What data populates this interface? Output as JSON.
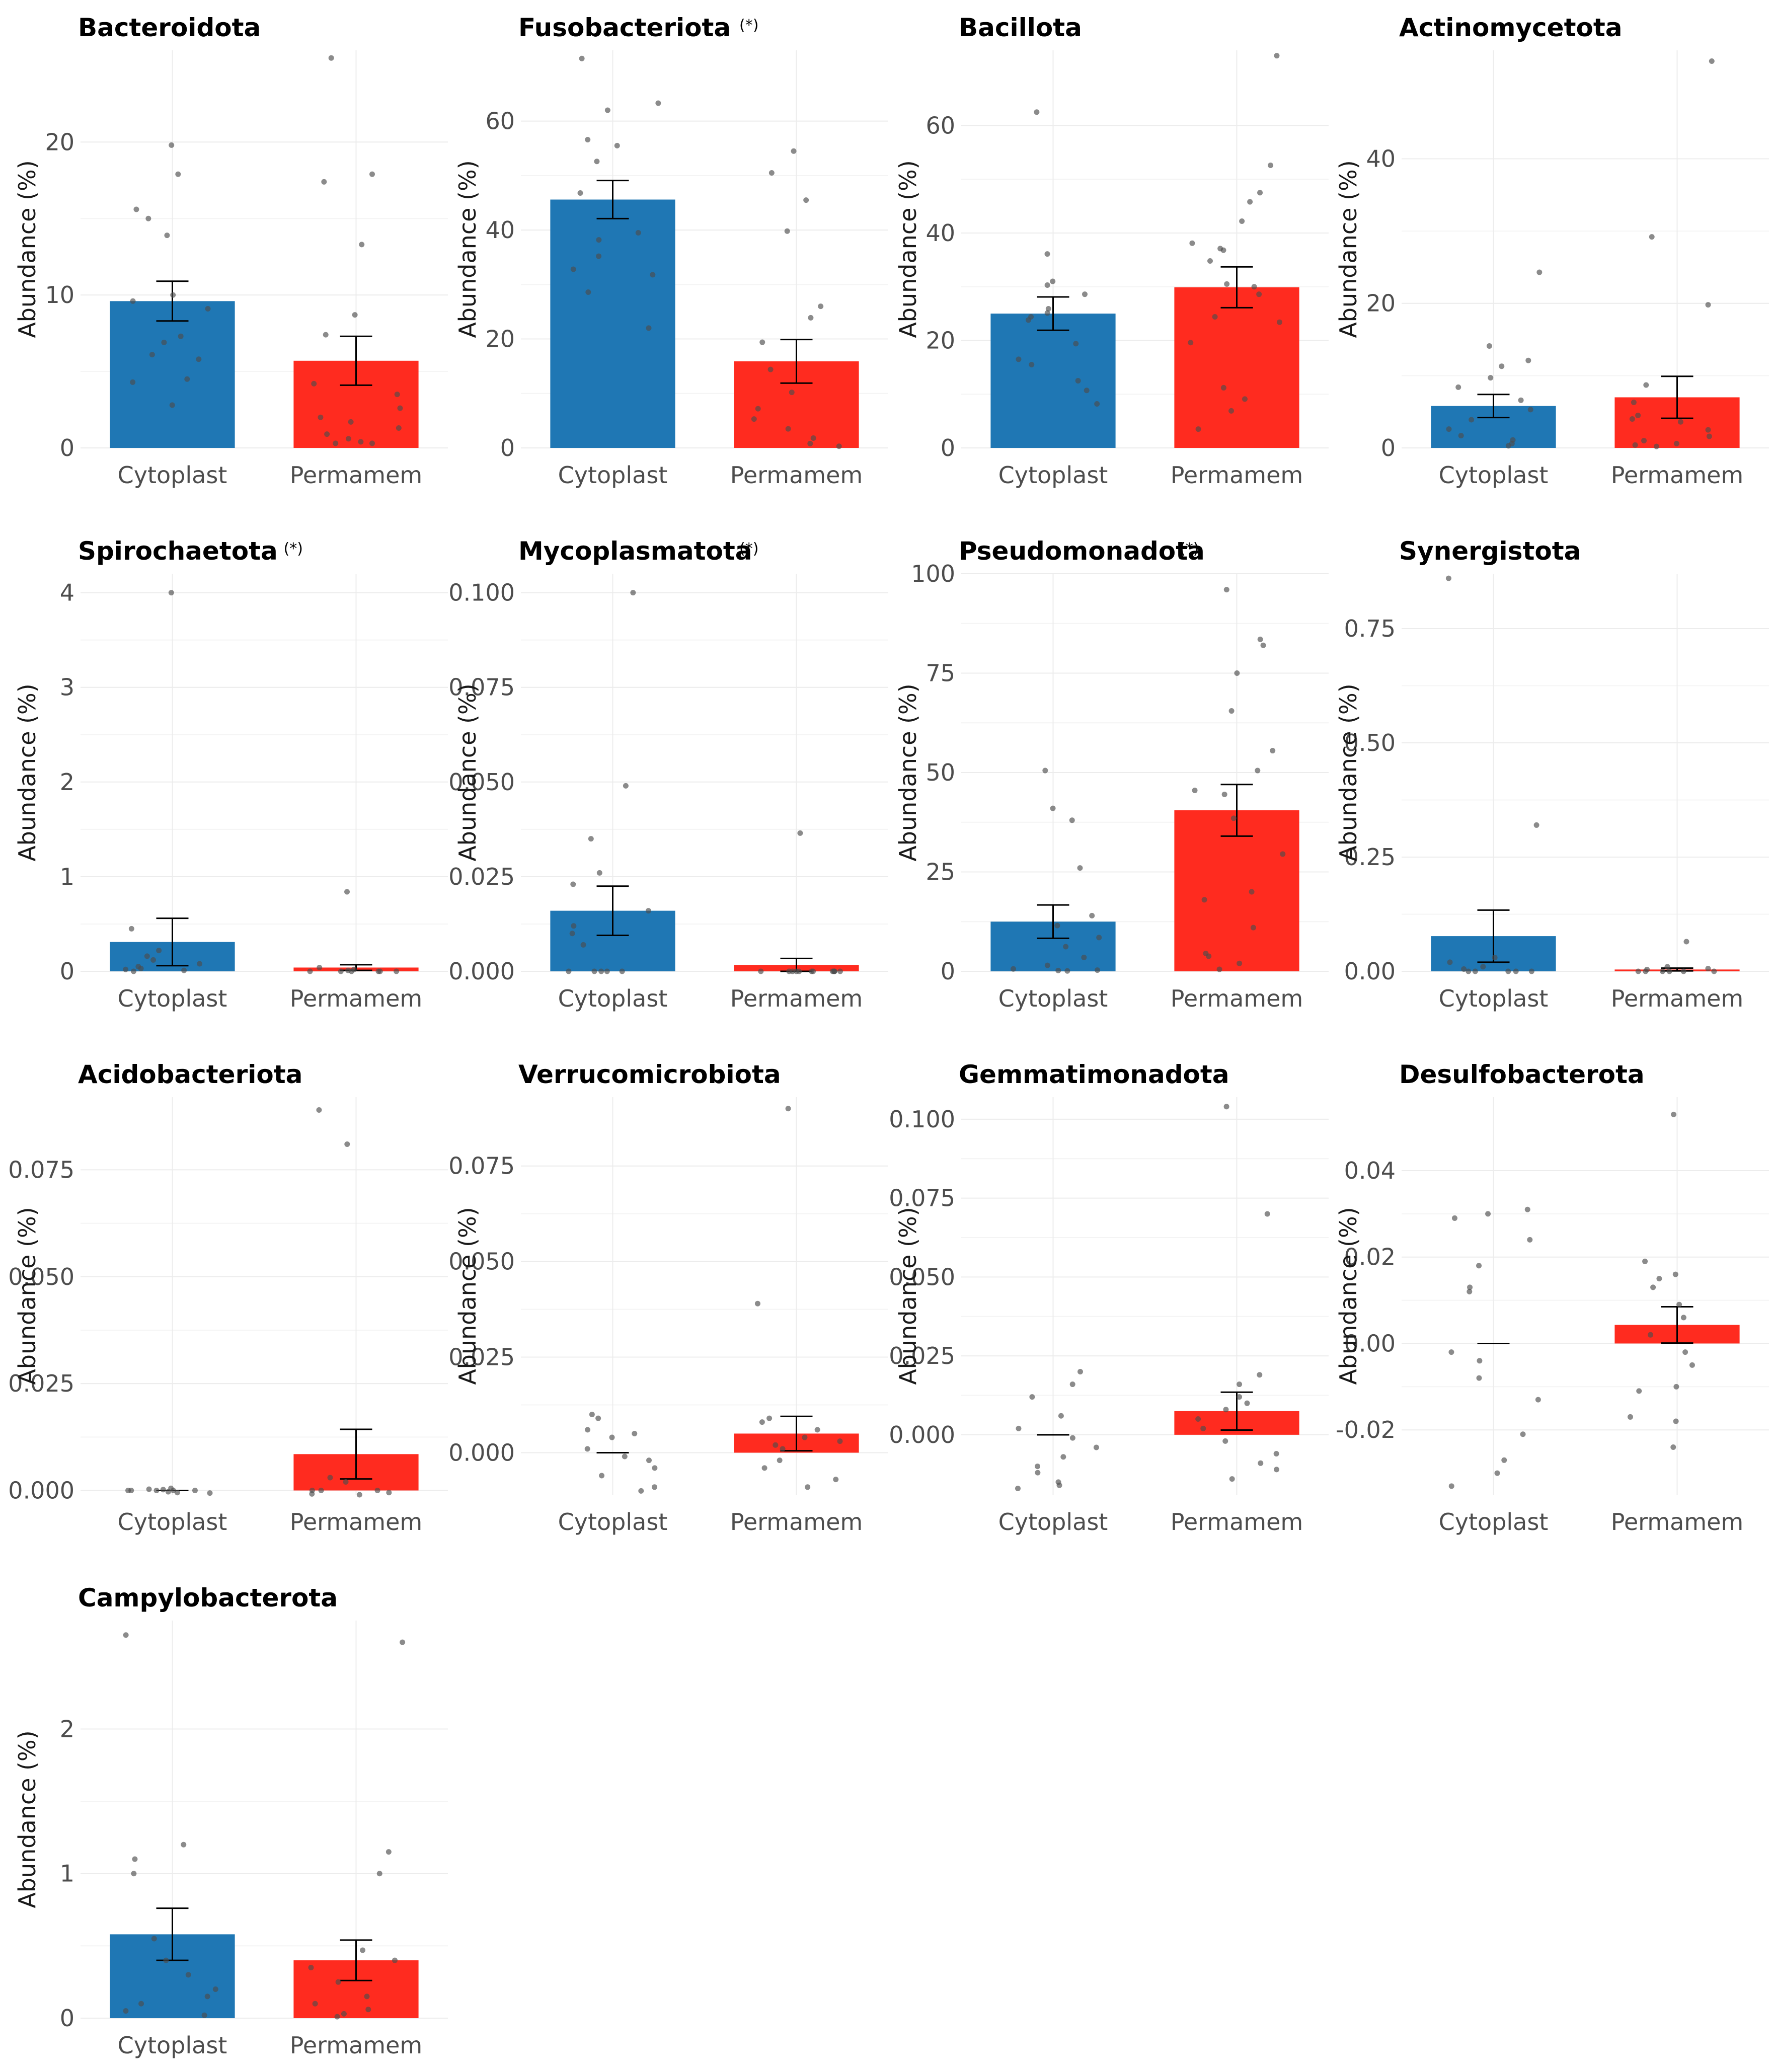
{
  "chart_data": [
    {
      "type": "bar",
      "title": "Bacteroidota",
      "sig": "",
      "ylabel": "Abundance (%)",
      "categories": [
        "Cytoplast",
        "Permamem"
      ],
      "values": [
        9.6,
        5.7
      ],
      "se": [
        1.3,
        1.6
      ],
      "ylim": [
        0,
        26
      ],
      "yticks": [
        "0",
        "10",
        "20"
      ],
      "ytick_values": [
        0,
        10,
        20
      ],
      "points": [
        [
          19.8,
          17.9,
          15.6,
          15.0,
          13.9,
          10.0,
          9.6,
          9.1,
          7.3,
          6.9,
          6.1,
          5.8,
          4.5,
          4.3,
          2.8
        ],
        [
          25.5,
          17.9,
          17.4,
          13.3,
          8.7,
          7.4,
          4.2,
          3.5,
          2.6,
          2.0,
          1.7,
          1.3,
          0.9,
          0.6,
          0.4,
          0.3,
          0.3
        ]
      ]
    },
    {
      "type": "bar",
      "title": "Fusobacteriota",
      "sig": "(*)",
      "ylabel": "Abundance (%)",
      "categories": [
        "Cytoplast",
        "Permamem"
      ],
      "values": [
        45.6,
        15.9
      ],
      "se": [
        3.5,
        4.0
      ],
      "ylim": [
        0,
        73
      ],
      "yticks": [
        "0",
        "20",
        "40",
        "60"
      ],
      "ytick_values": [
        0,
        20,
        40,
        60
      ],
      "points": [
        [
          71.5,
          63.3,
          62.0,
          56.6,
          55.5,
          52.6,
          46.8,
          39.5,
          38.2,
          35.2,
          32.8,
          31.8,
          28.6,
          22.0
        ],
        [
          54.5,
          50.5,
          45.5,
          39.8,
          26.0,
          23.9,
          19.4,
          14.4,
          10.2,
          7.2,
          5.3,
          3.5,
          1.8,
          0.8,
          0.3
        ]
      ]
    },
    {
      "type": "bar",
      "title": "Bacillota",
      "sig": "",
      "ylabel": "Abundance (%)",
      "categories": [
        "Cytoplast",
        "Permamem"
      ],
      "values": [
        25.0,
        29.9
      ],
      "se": [
        3.1,
        3.8
      ],
      "ylim": [
        0,
        74
      ],
      "yticks": [
        "0",
        "20",
        "40",
        "60"
      ],
      "ytick_values": [
        0,
        20,
        40,
        60
      ],
      "points": [
        [
          62.5,
          36.1,
          31.0,
          30.3,
          28.6,
          25.9,
          25.1,
          24.4,
          23.8,
          19.4,
          16.5,
          15.5,
          12.5,
          10.7,
          8.2
        ],
        [
          73.0,
          52.6,
          47.5,
          45.8,
          42.2,
          38.1,
          37.1,
          36.8,
          34.8,
          30.5,
          30.0,
          28.6,
          24.4,
          23.4,
          19.6,
          11.2,
          9.1,
          6.9,
          3.5
        ]
      ]
    },
    {
      "type": "bar",
      "title": "Actinomycetota",
      "sig": "",
      "ylabel": "Abundance (%)",
      "categories": [
        "Cytoplast",
        "Permamem"
      ],
      "values": [
        5.8,
        7.0
      ],
      "se": [
        1.6,
        2.9
      ],
      "ylim": [
        0,
        55
      ],
      "yticks": [
        "0",
        "20",
        "40"
      ],
      "ytick_values": [
        0,
        20,
        40
      ],
      "points": [
        [
          24.3,
          14.1,
          12.1,
          11.3,
          9.7,
          8.4,
          6.6,
          5.3,
          3.9,
          2.6,
          1.7,
          1.1,
          0.6,
          0.3
        ],
        [
          53.5,
          29.2,
          19.8,
          8.7,
          6.3,
          4.5,
          4.0,
          3.6,
          2.5,
          1.6,
          1.0,
          0.6,
          0.4,
          0.2
        ]
      ]
    },
    {
      "type": "bar",
      "title": "Spirochaetota",
      "sig": "(*)",
      "ylabel": "Abundance (%)",
      "categories": [
        "Cytoplast",
        "Permamem"
      ],
      "values": [
        0.31,
        0.04
      ],
      "se": [
        0.25,
        0.03
      ],
      "ylim": [
        0,
        4.2
      ],
      "yticks": [
        "0",
        "1",
        "2",
        "3",
        "4"
      ],
      "ytick_values": [
        0,
        1,
        2,
        3,
        4
      ],
      "points": [
        [
          4.0,
          0.45,
          0.22,
          0.16,
          0.12,
          0.08,
          0.05,
          0.03,
          0.02,
          0.01,
          0.0
        ],
        [
          0.84,
          0.04,
          0.02,
          0.01,
          0.0,
          0.0,
          0.0,
          0.0,
          0.0,
          0.0
        ]
      ]
    },
    {
      "type": "bar",
      "title": "Mycoplasmatota",
      "sig": "(*)",
      "ylabel": "Abundance (%)",
      "categories": [
        "Cytoplast",
        "Permamem"
      ],
      "values": [
        0.016,
        0.0017
      ],
      "se": [
        0.0065,
        0.0017
      ],
      "ylim": [
        0,
        0.105
      ],
      "yticks": [
        "0.000",
        "0.025",
        "0.050",
        "0.075",
        "0.100"
      ],
      "ytick_values": [
        0,
        0.025,
        0.05,
        0.075,
        0.1
      ],
      "points": [
        [
          0.1,
          0.049,
          0.035,
          0.026,
          0.023,
          0.016,
          0.012,
          0.01,
          0.007,
          0.0,
          0.0,
          0.0,
          0.0,
          0.0
        ],
        [
          0.0365,
          0.0,
          0.0,
          0.0,
          0.0,
          0.0,
          0.0,
          0.0,
          0.0,
          0.0,
          0.0,
          0.0,
          0.0
        ]
      ]
    },
    {
      "type": "bar",
      "title": "Pseudomonadota",
      "sig": "(*)",
      "ylabel": "Abundance (%)",
      "categories": [
        "Cytoplast",
        "Permamem"
      ],
      "values": [
        12.5,
        40.5
      ],
      "se": [
        4.2,
        6.5
      ],
      "ylim": [
        0,
        100
      ],
      "yticks": [
        "0",
        "25",
        "50",
        "75",
        "100"
      ],
      "ytick_values": [
        0,
        25,
        50,
        75,
        100
      ],
      "points": [
        [
          50.5,
          41.0,
          38.0,
          26.0,
          14.0,
          11.5,
          8.5,
          6.2,
          3.5,
          1.5,
          0.6,
          0.3,
          0.2,
          0.1
        ],
        [
          96.0,
          83.5,
          82.0,
          75.0,
          65.5,
          55.5,
          50.5,
          45.5,
          44.5,
          38.5,
          29.5,
          20.0,
          18.0,
          11.0,
          4.5,
          3.8,
          2.0,
          0.5
        ]
      ]
    },
    {
      "type": "bar",
      "title": "Synergistota",
      "sig": "",
      "ylabel": "Abundance (%)",
      "categories": [
        "Cytoplast",
        "Permamem"
      ],
      "values": [
        0.077,
        0.004
      ],
      "se": [
        0.057,
        0.003
      ],
      "ylim": [
        0,
        0.87
      ],
      "yticks": [
        "0.00",
        "0.25",
        "0.50",
        "0.75"
      ],
      "ytick_values": [
        0,
        0.25,
        0.5,
        0.75
      ],
      "points": [
        [
          0.86,
          0.32,
          0.03,
          0.02,
          0.01,
          0.005,
          0.0,
          0.0,
          0.0,
          0.0,
          0.0
        ],
        [
          0.065,
          0.01,
          0.006,
          0.004,
          0.0,
          0.0,
          0.0,
          0.0,
          0.0,
          0.0
        ]
      ]
    },
    {
      "type": "bar",
      "title": "Acidobacteriota",
      "sig": "",
      "ylabel": "Abundance (%)",
      "categories": [
        "Cytoplast",
        "Permamem"
      ],
      "values": [
        0.0,
        0.0085
      ],
      "se": [
        0.0,
        0.0058
      ],
      "ylim": [
        -0.001,
        0.092
      ],
      "yticks": [
        "0.000",
        "0.025",
        "0.050",
        "0.075"
      ],
      "ytick_values": [
        0,
        0.025,
        0.05,
        0.075
      ],
      "points": [
        [
          0.0005,
          0.0003,
          0.0002,
          0.0,
          0.0,
          0.0,
          0.0,
          0.0,
          -0.0003,
          -0.0005,
          -0.0006
        ],
        [
          0.089,
          0.081,
          0.003,
          0.002,
          0.0,
          0.0,
          0.0,
          -0.0005,
          -0.0008,
          -0.001
        ]
      ]
    },
    {
      "type": "bar",
      "title": "Verrucomicrobiota",
      "sig": "",
      "ylabel": "Abundance (%)",
      "categories": [
        "Cytoplast",
        "Permamem"
      ],
      "values": [
        0.0,
        0.005
      ],
      "se": [
        0.0,
        0.0045
      ],
      "ylim": [
        -0.011,
        0.093
      ],
      "yticks": [
        "0.000",
        "0.025",
        "0.050",
        "0.075"
      ],
      "ytick_values": [
        0,
        0.025,
        0.05,
        0.075
      ],
      "points": [
        [
          0.01,
          0.009,
          0.006,
          0.005,
          0.004,
          0.001,
          -0.001,
          -0.002,
          -0.004,
          -0.006,
          -0.009,
          -0.01
        ],
        [
          0.09,
          0.039,
          0.009,
          0.008,
          0.006,
          0.004,
          0.003,
          0.002,
          0.001,
          -0.002,
          -0.004,
          -0.007,
          -0.009
        ]
      ]
    },
    {
      "type": "bar",
      "title": "Gemmatimonadota",
      "sig": "",
      "ylabel": "Abundance (%)",
      "categories": [
        "Cytoplast",
        "Permamem"
      ],
      "values": [
        0.0,
        0.0075
      ],
      "se": [
        0.0,
        0.006
      ],
      "ylim": [
        -0.019,
        0.107
      ],
      "yticks": [
        "0.000",
        "0.025",
        "0.050",
        "0.075",
        "0.100"
      ],
      "ytick_values": [
        0,
        0.025,
        0.05,
        0.075,
        0.1
      ],
      "points": [
        [
          0.02,
          0.016,
          0.012,
          0.006,
          0.002,
          -0.001,
          -0.004,
          -0.007,
          -0.01,
          -0.012,
          -0.015,
          -0.016,
          -0.017
        ],
        [
          0.104,
          0.07,
          0.019,
          0.016,
          0.012,
          0.01,
          0.008,
          0.005,
          0.002,
          -0.002,
          -0.006,
          -0.009,
          -0.011,
          -0.014
        ]
      ]
    },
    {
      "type": "bar",
      "title": "Desulfobacterota",
      "sig": "",
      "ylabel": "Abundance (%)",
      "categories": [
        "Cytoplast",
        "Permamem"
      ],
      "values": [
        0.0,
        0.0043
      ],
      "se": [
        0.0,
        0.0042
      ],
      "ylim": [
        -0.035,
        0.057
      ],
      "yticks": [
        "-0.02",
        "0.00",
        "0.02",
        "0.04"
      ],
      "ytick_values": [
        -0.02,
        0.0,
        0.02,
        0.04
      ],
      "points": [
        [
          0.031,
          0.03,
          0.029,
          0.024,
          0.018,
          0.013,
          0.012,
          -0.002,
          -0.004,
          -0.008,
          -0.013,
          -0.021,
          -0.027,
          -0.03,
          -0.033
        ],
        [
          0.053,
          0.019,
          0.016,
          0.015,
          0.013,
          0.009,
          0.006,
          0.002,
          -0.002,
          -0.005,
          -0.01,
          -0.011,
          -0.017,
          -0.018,
          -0.024
        ]
      ]
    },
    {
      "type": "bar",
      "title": "Campylobacterota",
      "sig": "",
      "ylabel": "Abundance (%)",
      "categories": [
        "Cytoplast",
        "Permamem"
      ],
      "values": [
        0.58,
        0.4
      ],
      "se": [
        0.18,
        0.14
      ],
      "ylim": [
        0,
        2.75
      ],
      "yticks": [
        "0",
        "1",
        "2"
      ],
      "ytick_values": [
        0,
        1,
        2
      ],
      "points": [
        [
          2.65,
          1.2,
          1.1,
          1.0,
          0.55,
          0.4,
          0.3,
          0.2,
          0.15,
          0.1,
          0.05,
          0.02
        ],
        [
          2.6,
          1.15,
          1.0,
          0.47,
          0.4,
          0.35,
          0.25,
          0.15,
          0.1,
          0.06,
          0.03,
          0.01
        ]
      ]
    }
  ],
  "colors": {
    "cytoplast": "#1f77b4",
    "permamem": "#ff2b1f"
  }
}
